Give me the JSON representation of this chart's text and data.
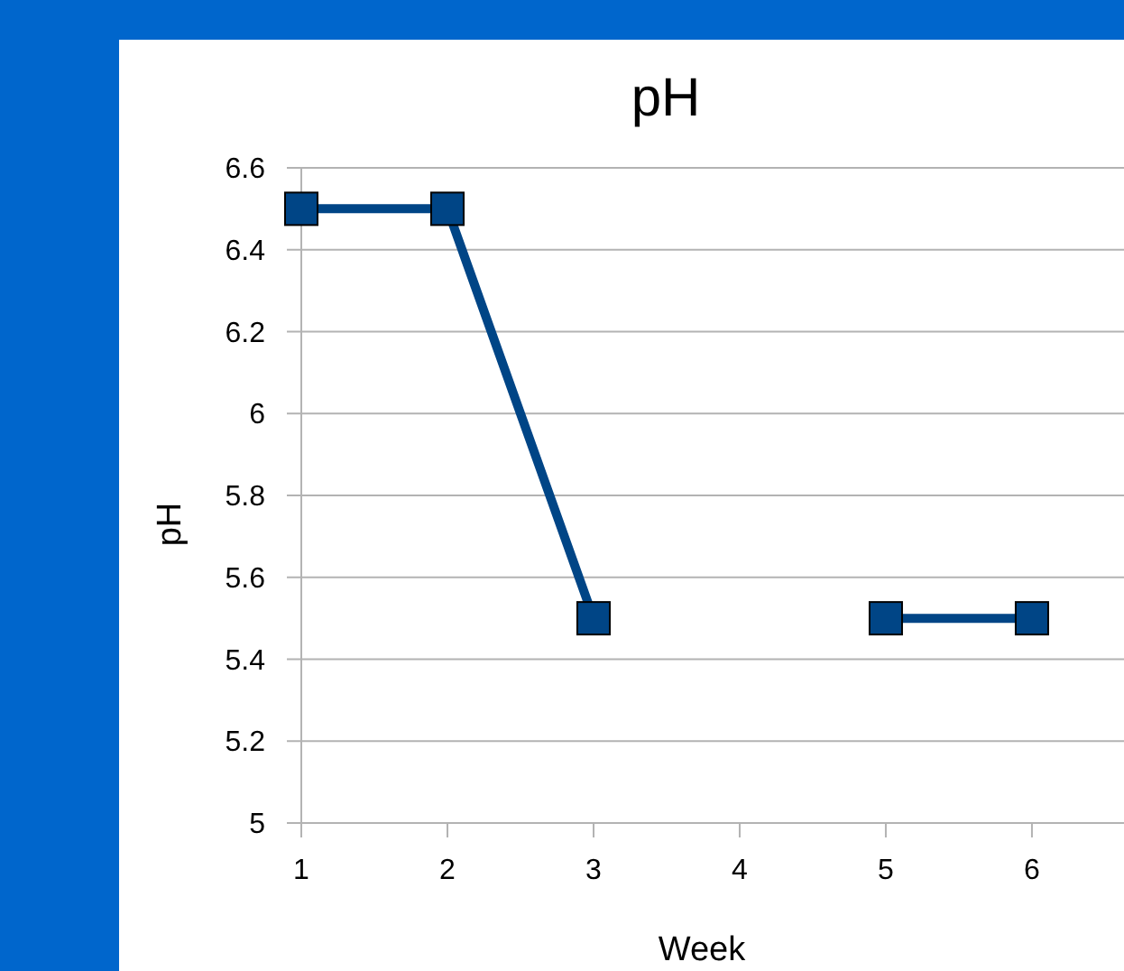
{
  "chart_data": {
    "type": "line",
    "title": "pH",
    "xlabel": "Week",
    "ylabel": "pH",
    "x": [
      1,
      2,
      3,
      4,
      5,
      6
    ],
    "series": [
      {
        "color": "#004586",
        "values": [
          6.5,
          6.5,
          5.5,
          null,
          5.5,
          5.5
        ]
      }
    ],
    "xlim": [
      1,
      6.63
    ],
    "xticks": [
      1,
      2,
      3,
      4,
      5,
      6
    ],
    "ylim": [
      5,
      6.6
    ],
    "yticks": [
      5,
      5.2,
      5.4,
      5.6,
      5.8,
      6,
      6.2,
      6.4,
      6.6
    ],
    "grid": "y",
    "marker": "square",
    "line_style": "solid"
  }
}
